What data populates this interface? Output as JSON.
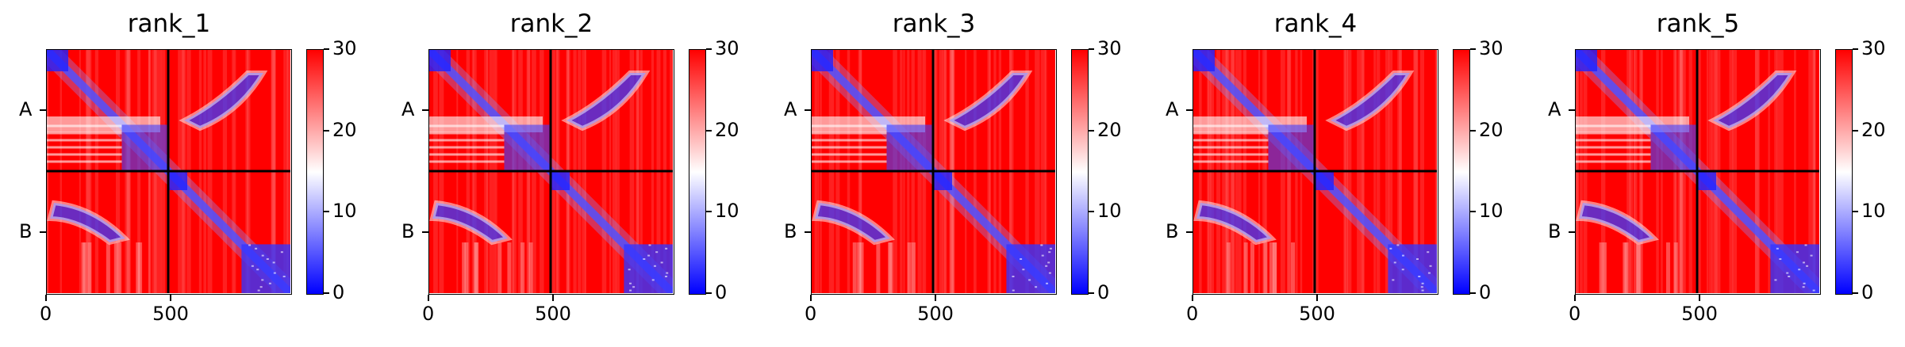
{
  "chart_data": [
    {
      "type": "heatmap",
      "title": "rank_1",
      "y_tick_labels": [
        "A",
        "B"
      ],
      "x_ticks": [
        0,
        500
      ],
      "x_range": [
        0,
        980
      ],
      "colorbar": {
        "min": 0,
        "max": 30,
        "ticks": [
          0,
          10,
          20,
          30
        ],
        "colormap": "bwr"
      }
    },
    {
      "type": "heatmap",
      "title": "rank_2",
      "y_tick_labels": [
        "A",
        "B"
      ],
      "x_ticks": [
        0,
        500
      ],
      "x_range": [
        0,
        980
      ],
      "colorbar": {
        "min": 0,
        "max": 30,
        "ticks": [
          0,
          10,
          20,
          30
        ],
        "colormap": "bwr"
      }
    },
    {
      "type": "heatmap",
      "title": "rank_3",
      "y_tick_labels": [
        "A",
        "B"
      ],
      "x_ticks": [
        0,
        500
      ],
      "x_range": [
        0,
        980
      ],
      "colorbar": {
        "min": 0,
        "max": 30,
        "ticks": [
          0,
          10,
          20,
          30
        ],
        "colormap": "bwr"
      }
    },
    {
      "type": "heatmap",
      "title": "rank_4",
      "y_tick_labels": [
        "A",
        "B"
      ],
      "x_ticks": [
        0,
        500
      ],
      "x_range": [
        0,
        980
      ],
      "colorbar": {
        "min": 0,
        "max": 30,
        "ticks": [
          0,
          10,
          20,
          30
        ],
        "colormap": "bwr"
      }
    },
    {
      "type": "heatmap",
      "title": "rank_5",
      "y_tick_labels": [
        "A",
        "B"
      ],
      "x_ticks": [
        0,
        500
      ],
      "x_range": [
        0,
        980
      ],
      "colorbar": {
        "min": 0,
        "max": 30,
        "ticks": [
          0,
          10,
          20,
          30
        ],
        "colormap": "bwr"
      }
    }
  ],
  "colors": {
    "low": "#0000ff",
    "mid": "#ffffff",
    "high": "#ff0000"
  }
}
